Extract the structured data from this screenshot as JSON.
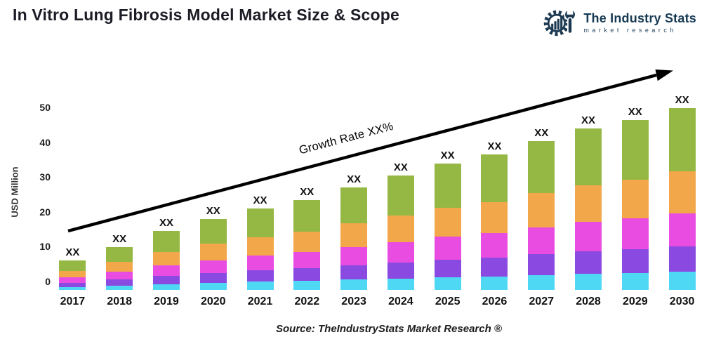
{
  "header": {
    "title": "In Vitro Lung Fibrosis Model Market Size & Scope",
    "logo": {
      "name": "The Industry Stats",
      "subtitle": "market research",
      "color": "#1d3a52"
    }
  },
  "chart_data": {
    "type": "bar",
    "stacked": true,
    "ylabel": "USD Million",
    "xlabel": "",
    "ylim": [
      0,
      50
    ],
    "yticks": [
      0,
      10,
      20,
      30,
      40,
      50
    ],
    "grid": false,
    "legend_position": "none",
    "bar_value_label": "XX",
    "categories": [
      "2017",
      "2018",
      "2019",
      "2020",
      "2021",
      "2022",
      "2023",
      "2024",
      "2025",
      "2026",
      "2027",
      "2028",
      "2029",
      "2030"
    ],
    "totals": [
      6,
      10,
      14.5,
      18,
      21,
      23.5,
      27,
      30.5,
      34,
      36.5,
      40.5,
      44,
      46.5,
      50
    ],
    "series": [
      {
        "name": "segment-cyan",
        "color": "#4fd8f4",
        "values": [
          0.6,
          1.0,
          1.45,
          1.8,
          2.1,
          2.35,
          2.7,
          3.05,
          3.4,
          3.65,
          4.05,
          4.4,
          4.65,
          5.0
        ]
      },
      {
        "name": "segment-purple",
        "color": "#8a49e0",
        "values": [
          0.84,
          1.4,
          2.03,
          2.52,
          2.94,
          3.29,
          3.78,
          4.27,
          4.76,
          5.11,
          5.67,
          6.16,
          6.51,
          7.0
        ]
      },
      {
        "name": "segment-magenta",
        "color": "#e94ce0",
        "values": [
          1.08,
          1.8,
          2.61,
          3.24,
          3.78,
          4.23,
          4.86,
          5.49,
          6.12,
          6.57,
          7.29,
          7.92,
          8.37,
          9.0
        ]
      },
      {
        "name": "segment-orange",
        "color": "#f2a74b",
        "values": [
          1.38,
          2.3,
          3.34,
          4.14,
          4.83,
          5.41,
          6.21,
          7.02,
          7.82,
          8.4,
          9.32,
          10.12,
          10.7,
          11.5
        ]
      },
      {
        "name": "segment-green",
        "color": "#94b843",
        "values": [
          2.1,
          3.5,
          5.08,
          6.3,
          7.35,
          8.23,
          9.45,
          10.68,
          11.9,
          12.78,
          14.18,
          15.4,
          16.28,
          17.5
        ]
      }
    ],
    "annotations": {
      "growth_label": "Growth Rate XX%",
      "arrow_color": "#000000"
    }
  },
  "footer": {
    "source": "Source: TheIndustryStats Market Research ®"
  }
}
